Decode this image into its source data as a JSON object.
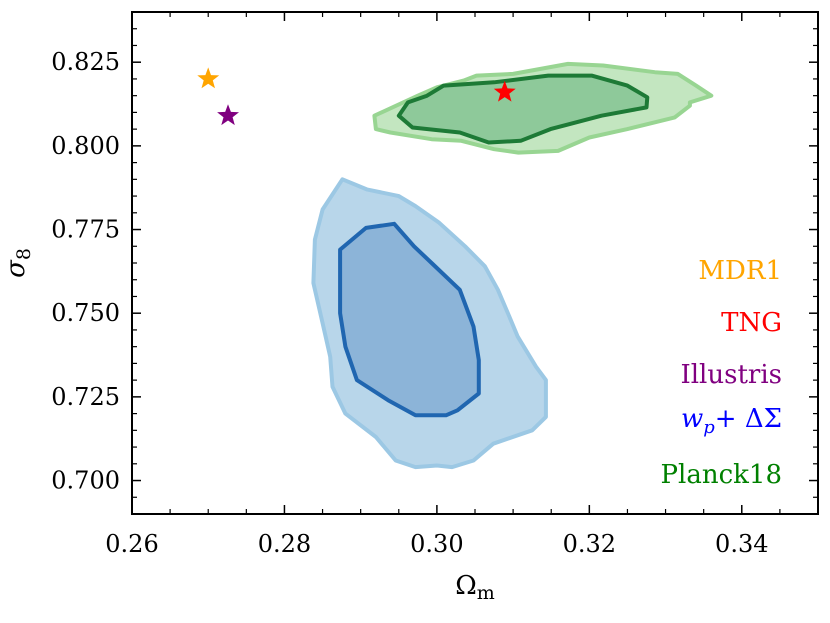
{
  "chart_data": {
    "type": "scatter",
    "title": "",
    "xlabel": "Ω",
    "xlabel_sub": "m",
    "ylabel": "σ",
    "ylabel_sub": "8",
    "xlim": [
      0.26,
      0.35
    ],
    "ylim": [
      0.69,
      0.84
    ],
    "xticks": [
      0.26,
      0.28,
      0.3,
      0.32,
      0.34
    ],
    "xtick_labels": [
      "0.26",
      "0.28",
      "0.30",
      "0.32",
      "0.34"
    ],
    "yticks": [
      0.7,
      0.725,
      0.75,
      0.775,
      0.8,
      0.825
    ],
    "ytick_labels": [
      "0.700",
      "0.725",
      "0.750",
      "0.775",
      "0.800",
      "0.825"
    ],
    "colors": {
      "MDR1": "#ffa500",
      "TNG": "#ff0000",
      "Illustris": "#800080",
      "wp_dsigma": "#0000ff",
      "Planck18": "#008000"
    },
    "points": [
      {
        "name": "MDR1",
        "x": 0.27,
        "y": 0.82,
        "color": "#ffa500"
      },
      {
        "name": "TNG",
        "x": 0.3089,
        "y": 0.816,
        "color": "#ff0000"
      },
      {
        "name": "Illustris",
        "x": 0.2726,
        "y": 0.809,
        "color": "#800080"
      }
    ],
    "contours": [
      {
        "name": "wp + ΔΣ (95%)",
        "fill": "#b8d6ea",
        "stroke": "#9cc8e4",
        "points": [
          [
            0.2876,
            0.79
          ],
          [
            0.2908,
            0.787
          ],
          [
            0.295,
            0.785
          ],
          [
            0.2972,
            0.782
          ],
          [
            0.3003,
            0.777
          ],
          [
            0.3037,
            0.77
          ],
          [
            0.3063,
            0.764
          ],
          [
            0.308,
            0.757
          ],
          [
            0.3095,
            0.749
          ],
          [
            0.3106,
            0.743
          ],
          [
            0.313,
            0.734
          ],
          [
            0.3143,
            0.73
          ],
          [
            0.3143,
            0.719
          ],
          [
            0.3125,
            0.715
          ],
          [
            0.3074,
            0.711
          ],
          [
            0.3048,
            0.706
          ],
          [
            0.302,
            0.704
          ],
          [
            0.3,
            0.7045
          ],
          [
            0.2972,
            0.704
          ],
          [
            0.2946,
            0.706
          ],
          [
            0.292,
            0.713
          ],
          [
            0.288,
            0.72
          ],
          [
            0.2863,
            0.728
          ],
          [
            0.286,
            0.737
          ],
          [
            0.285,
            0.747
          ],
          [
            0.2838,
            0.759
          ],
          [
            0.284,
            0.772
          ],
          [
            0.285,
            0.781
          ]
        ]
      },
      {
        "name": "wp + ΔΣ (68%)",
        "fill": "#8cb4d8",
        "stroke": "#2066b0",
        "points": [
          [
            0.2907,
            0.7755
          ],
          [
            0.2944,
            0.7767
          ],
          [
            0.297,
            0.77
          ],
          [
            0.2993,
            0.765
          ],
          [
            0.303,
            0.757
          ],
          [
            0.3048,
            0.746
          ],
          [
            0.3055,
            0.736
          ],
          [
            0.3055,
            0.726
          ],
          [
            0.3027,
            0.721
          ],
          [
            0.3012,
            0.7195
          ],
          [
            0.2972,
            0.7195
          ],
          [
            0.2936,
            0.724
          ],
          [
            0.2895,
            0.73
          ],
          [
            0.288,
            0.74
          ],
          [
            0.2873,
            0.75
          ],
          [
            0.2873,
            0.769
          ]
        ]
      },
      {
        "name": "Planck18 (95%)",
        "fill": "#c3e6c0",
        "stroke": "#98d592",
        "points": [
          [
            0.3035,
            0.8195
          ],
          [
            0.3052,
            0.821
          ],
          [
            0.31,
            0.8215
          ],
          [
            0.3172,
            0.8245
          ],
          [
            0.3218,
            0.824
          ],
          [
            0.3286,
            0.822
          ],
          [
            0.3316,
            0.8215
          ],
          [
            0.334,
            0.818
          ],
          [
            0.336,
            0.815
          ],
          [
            0.3332,
            0.813
          ],
          [
            0.3332,
            0.812
          ],
          [
            0.3312,
            0.8085
          ],
          [
            0.325,
            0.805
          ],
          [
            0.32,
            0.8025
          ],
          [
            0.3159,
            0.7985
          ],
          [
            0.3107,
            0.798
          ],
          [
            0.3075,
            0.799
          ],
          [
            0.3032,
            0.8015
          ],
          [
            0.2993,
            0.802
          ],
          [
            0.2939,
            0.804
          ],
          [
            0.292,
            0.805
          ],
          [
            0.2918,
            0.809
          ],
          [
            0.2975,
            0.815
          ],
          [
            0.3,
            0.8175
          ]
        ]
      },
      {
        "name": "Planck18 (68%)",
        "fill": "#8ec99a",
        "stroke": "#1d7a36",
        "points": [
          [
            0.3009,
            0.818
          ],
          [
            0.3075,
            0.819
          ],
          [
            0.3146,
            0.821
          ],
          [
            0.3203,
            0.821
          ],
          [
            0.325,
            0.818
          ],
          [
            0.3276,
            0.8145
          ],
          [
            0.3275,
            0.8115
          ],
          [
            0.3216,
            0.809
          ],
          [
            0.3149,
            0.805
          ],
          [
            0.311,
            0.8015
          ],
          [
            0.3068,
            0.801
          ],
          [
            0.303,
            0.804
          ],
          [
            0.2968,
            0.8055
          ],
          [
            0.295,
            0.809
          ],
          [
            0.2962,
            0.813
          ],
          [
            0.2987,
            0.815
          ]
        ]
      }
    ],
    "legend": [
      {
        "label": "MDR1",
        "color": "#ffa500"
      },
      {
        "label": "TNG",
        "color": "#ff0000"
      },
      {
        "label": "Illustris",
        "color": "#800080"
      },
      {
        "label": "wp + ΔΣ",
        "label_parts": {
          "w": "w",
          "p": "p",
          "rest": "+ ΔΣ"
        },
        "color": "#0000ff"
      },
      {
        "label": "Planck18",
        "color": "#008000"
      }
    ],
    "legend_position": "lower-right"
  }
}
